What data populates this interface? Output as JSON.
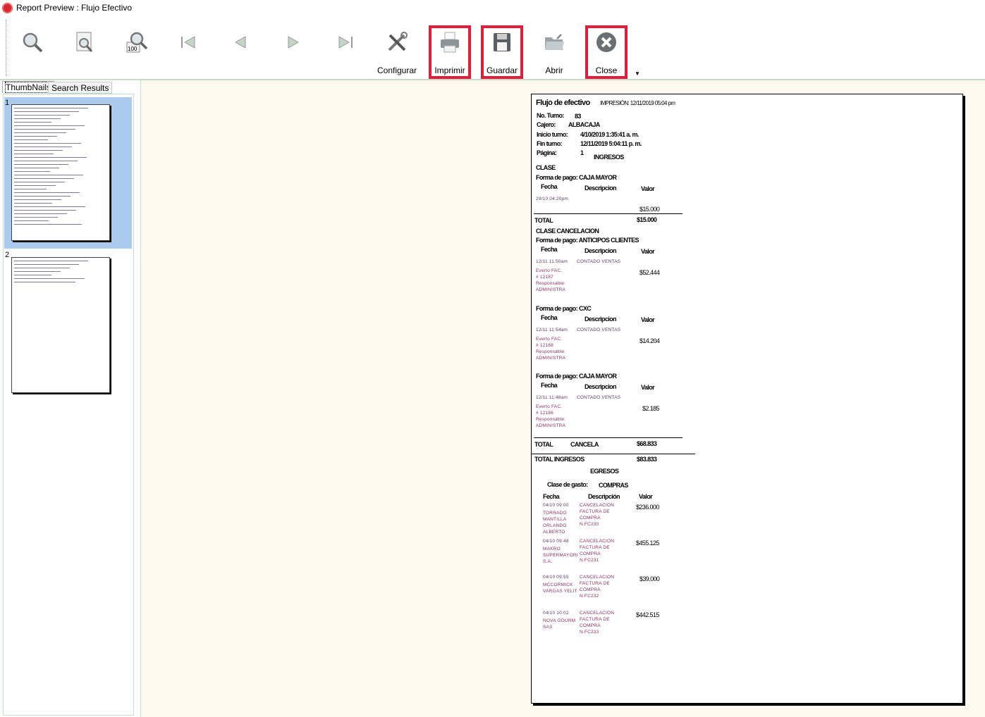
{
  "window": {
    "title": "Report Preview : Flujo Efectivo"
  },
  "toolbar": {
    "buttons": [
      {
        "icon": "zoom-icon",
        "label": ""
      },
      {
        "icon": "page-zoom-icon",
        "label": ""
      },
      {
        "icon": "zoom-100-icon",
        "label": "",
        "badge": "100"
      },
      {
        "icon": "first-page-icon",
        "label": ""
      },
      {
        "icon": "previous-page-icon",
        "label": ""
      },
      {
        "icon": "next-page-icon",
        "label": ""
      },
      {
        "icon": "last-page-icon",
        "label": ""
      },
      {
        "icon": "tools-icon",
        "label": "Configurar"
      },
      {
        "icon": "printer-icon",
        "label": "Imprimir",
        "highlighted": true
      },
      {
        "icon": "save-icon",
        "label": "Guardar",
        "highlighted": true
      },
      {
        "icon": "open-folder-icon",
        "label": "Abrir"
      },
      {
        "icon": "close-icon",
        "label": "Close",
        "highlighted": true
      }
    ],
    "highlight_color": "#e01e3c"
  },
  "sidebar": {
    "tabs": [
      "ThumbNails",
      "Search Results"
    ],
    "active_tab": "ThumbNails",
    "pages": [
      "1",
      "2"
    ],
    "selected_page": "1"
  },
  "report": {
    "title": "Flujo de efectivo",
    "printed": "IMPRESIÓN: 12/11/2019 05:04 pm",
    "header": [
      {
        "label": "No. Turno:",
        "value": "83"
      },
      {
        "label": "Cajero:",
        "value": "ALBACAJA"
      },
      {
        "label": "Inicio turno:",
        "value": "4/10/2019 1:35:41 a. m."
      },
      {
        "label": "Fin turno:",
        "value": "12/11/2019 5:04:11 p. m."
      },
      {
        "label": "Página:",
        "value": "1"
      }
    ],
    "ingresos_title": "INGRESOS",
    "col_fecha": "Fecha",
    "col_desc": "Descripcion",
    "col_valor": "Valor",
    "clase1": "CLASE",
    "fp1": "Forma de pago: CAJA MAYOR",
    "row1": {
      "fecha": "29/10 04:20pm",
      "valor": "$15.000"
    },
    "total1": {
      "label": "TOTAL",
      "value": "$15.000"
    },
    "clase2": "CLASE CANCELACION",
    "groups": [
      {
        "fp": "Forma de pago: ANTICIPOS CLIENTES",
        "fecha": "12/11 11:50am",
        "desc": "CONTADO VENTAS",
        "detail": [
          "Everto FAC.",
          "# 12187",
          "Responsable:",
          "ADMINISTRA"
        ],
        "valor": "$52.444"
      },
      {
        "fp": "Forma de pago: CXC",
        "fecha": "12/11 11:54am",
        "desc": "CONTADO VENTAS",
        "detail": [
          "Everto FAC.",
          "# 12188",
          "Responsable:",
          "ADMINISTRA"
        ],
        "valor": "$14.204"
      },
      {
        "fp": "Forma de pago: CAJA MAYOR",
        "fecha": "12/11 11:48am",
        "desc": "CONTADO VENTAS",
        "detail": [
          "Everto FAC.",
          "# 12186",
          "Responsable:",
          "ADMINISTRA"
        ],
        "valor": "$2.185"
      }
    ],
    "total2": {
      "label": "TOTAL",
      "mid": "CANCELA",
      "value": "$68.833"
    },
    "total_ingresos": {
      "label": "TOTAL INGRESOS",
      "value": "$83.833"
    },
    "egresos_title": "EGRESOS",
    "clase_gasto_label": "Clase de gasto:",
    "clase_gasto": "COMPRAS",
    "eg_fecha": "Fecha",
    "eg_desc": "Descripción",
    "eg_valor": "Valor",
    "egresos": [
      {
        "fecha": "04/10 09:00",
        "name": [
          "TORRADO",
          "MANTILLA",
          "ORLANDO",
          "ALBERTO"
        ],
        "desc": [
          "CANCELACION",
          "FACTURA DE",
          "COMPRA",
          "N.FC230"
        ],
        "valor": "$236.000"
      },
      {
        "fecha": "04/10 09:48",
        "name": [
          "MAKRO",
          "SUPERMAYORI",
          "S.A."
        ],
        "desc": [
          "CANCELACION",
          "FACTURA DE",
          "COMPRA",
          "N.FC231"
        ],
        "valor": "$455.125"
      },
      {
        "fecha": "04/10 09:55",
        "name": [
          "MCCORMICK",
          "VARGAS YELIT"
        ],
        "desc": [
          "CANCELACION",
          "FACTURA DE",
          "COMPRA",
          "N.FC232"
        ],
        "valor": "$39.000"
      },
      {
        "fecha": "04/10 10:02",
        "name": [
          "NOVA GOURM",
          "SAS"
        ],
        "desc": [
          "CANCELACION",
          "FACTURA DE",
          "COMPRA",
          "N.FC233"
        ],
        "valor": "$442.515"
      }
    ]
  }
}
